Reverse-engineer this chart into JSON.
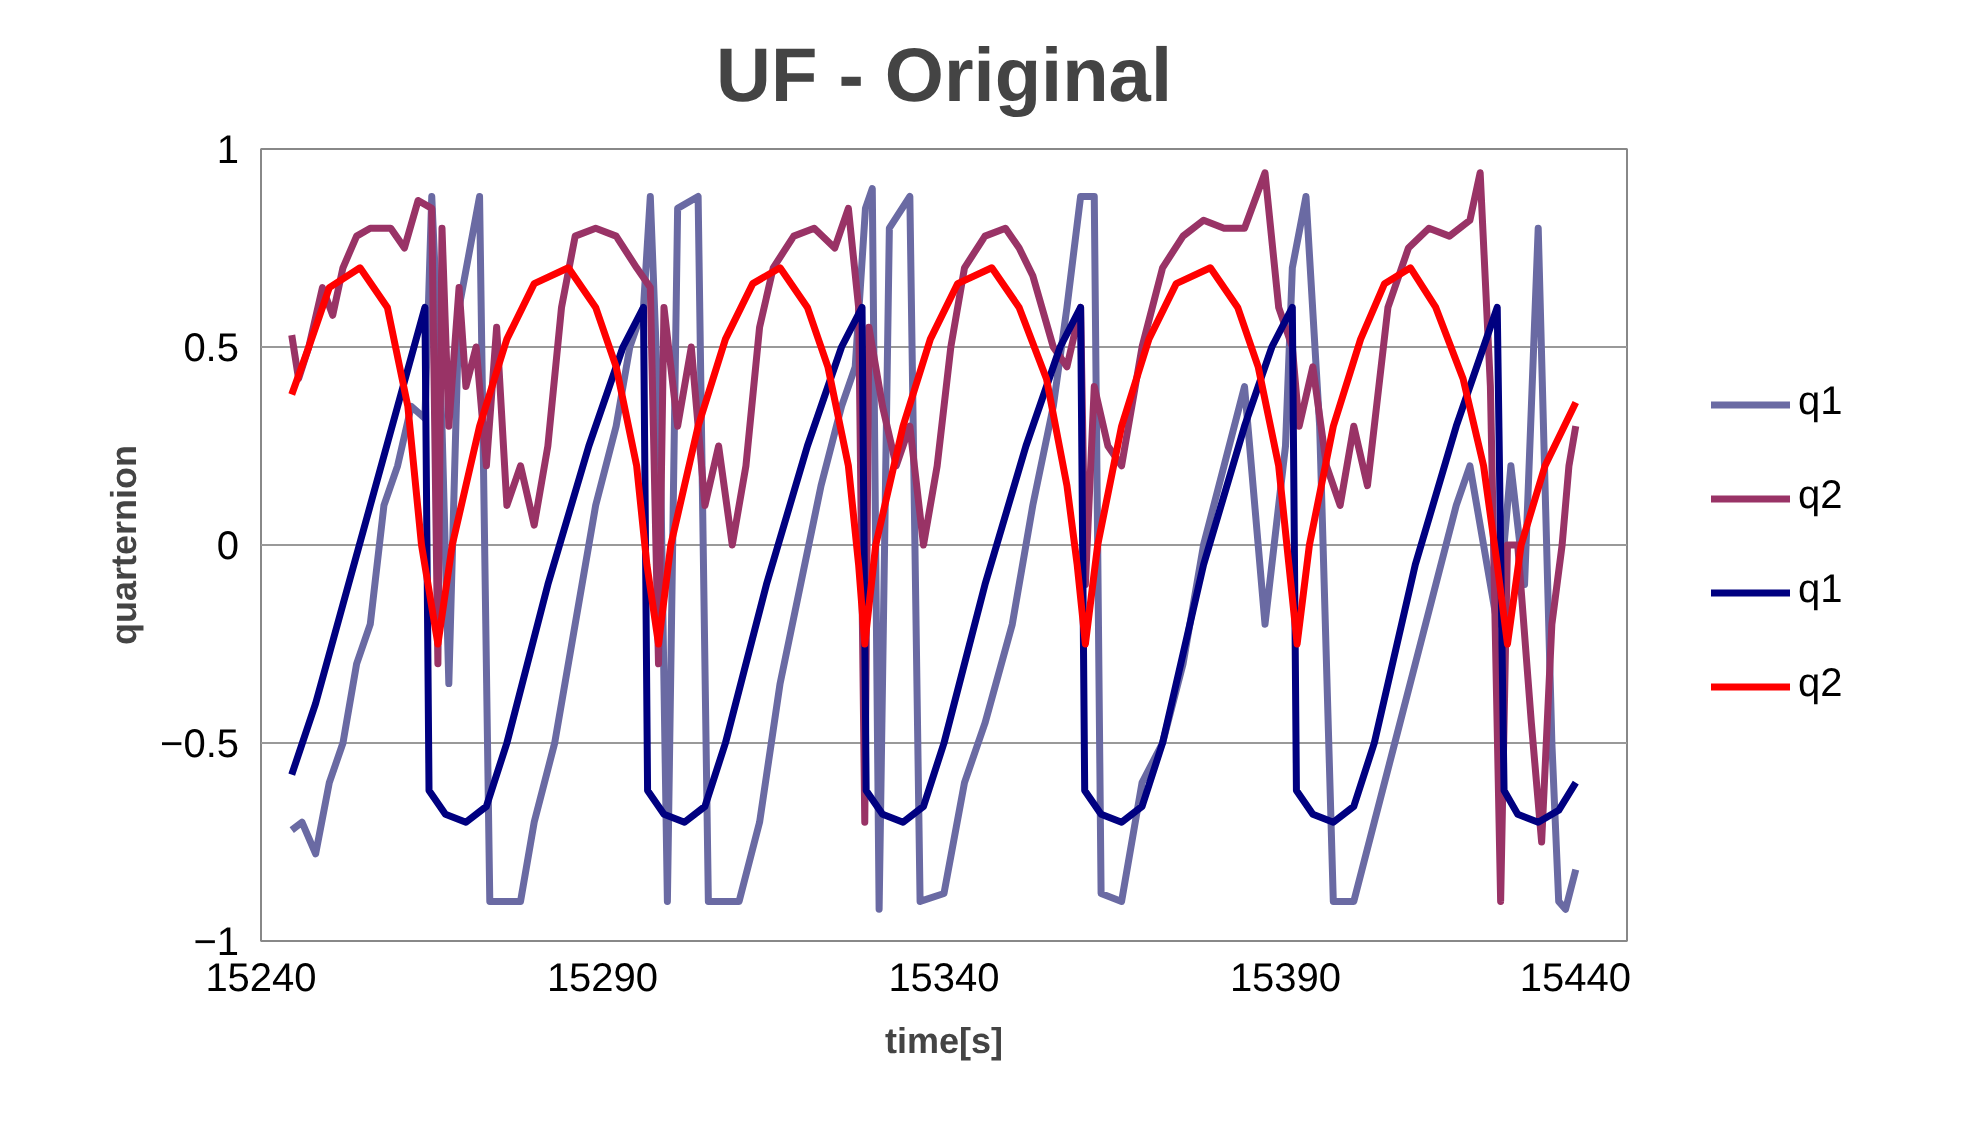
{
  "chart_data": {
    "type": "line",
    "title": "UF - Original",
    "xlabel": "time[s]",
    "ylabel": "quarternion",
    "xlim": [
      15240,
      15440
    ],
    "xticks": [
      15240,
      15290,
      15340,
      15390,
      15440
    ],
    "ylim": [
      -1,
      1
    ],
    "yticks": [
      {
        "value": -1,
        "label": "−1"
      },
      {
        "value": -0.5,
        "label": "−0.5"
      },
      0,
      0.5,
      1
    ],
    "grid": "y",
    "legend": "right",
    "marker": "none",
    "line_style": "solid",
    "series": [
      {
        "name": "q1",
        "color": "#6a6aa3",
        "x": [
          15244.5,
          15246,
          15248,
          15250,
          15252,
          15254,
          15256,
          15258,
          15260,
          15262,
          15264,
          15265,
          15266.5,
          15267.5,
          15269,
          15272,
          15273.5,
          15278,
          15280,
          15283,
          15286,
          15289,
          15292,
          15294,
          15296,
          15297,
          15298.5,
          15299.5,
          15301,
          15304,
          15305.5,
          15310,
          15313,
          15316,
          15319,
          15322,
          15325,
          15327,
          15328.5,
          15329.5,
          15330.5,
          15332,
          15335,
          15336.5,
          15340,
          15343,
          15346,
          15350,
          15353,
          15356,
          15358,
          15360,
          15362,
          15363,
          15366,
          15369,
          15372,
          15375,
          15378,
          15381,
          15384,
          15387,
          15390,
          15391,
          15393,
          15395,
          15397,
          15400,
          15403,
          15406,
          15409,
          15412,
          15415,
          15417,
          15419,
          15421,
          15423,
          15425,
          15427,
          15429,
          15430,
          15431,
          15432.5
        ],
        "values": [
          -0.72,
          -0.7,
          -0.78,
          -0.6,
          -0.5,
          -0.3,
          -0.2,
          0.1,
          0.2,
          0.35,
          0.32,
          0.88,
          0.3,
          -0.35,
          0.6,
          0.88,
          -0.9,
          -0.9,
          -0.7,
          -0.5,
          -0.2,
          0.1,
          0.3,
          0.5,
          0.6,
          0.88,
          0.2,
          -0.9,
          0.85,
          0.88,
          -0.9,
          -0.9,
          -0.7,
          -0.35,
          -0.1,
          0.15,
          0.35,
          0.45,
          0.85,
          0.9,
          -0.92,
          0.8,
          0.88,
          -0.9,
          -0.88,
          -0.6,
          -0.45,
          -0.2,
          0.1,
          0.35,
          0.6,
          0.88,
          0.88,
          -0.88,
          -0.9,
          -0.6,
          -0.5,
          -0.3,
          0.0,
          0.2,
          0.4,
          -0.2,
          0.25,
          0.7,
          0.88,
          0.3,
          -0.9,
          -0.9,
          -0.7,
          -0.5,
          -0.3,
          -0.1,
          0.1,
          0.2,
          0.0,
          -0.2,
          0.2,
          -0.1,
          0.8,
          -0.5,
          -0.9,
          -0.92,
          -0.82
        ]
      },
      {
        "name": "q2",
        "color": "#993366",
        "x": [
          15244.5,
          15245.5,
          15247,
          15249,
          15250.5,
          15252,
          15254,
          15256,
          15259,
          15261,
          15263,
          15265,
          15265.9,
          15266.5,
          15267.5,
          15269,
          15270,
          15271.5,
          15273,
          15274.5,
          15276,
          15278,
          15280,
          15282,
          15284,
          15286,
          15289,
          15292,
          15295,
          15297,
          15298.2,
          15299,
          15301,
          15303,
          15305,
          15307,
          15309,
          15311,
          15313,
          15315,
          15318,
          15321,
          15324,
          15326,
          15327.5,
          15328.4,
          15329,
          15331,
          15333,
          15335,
          15337,
          15339,
          15341,
          15343,
          15346,
          15349,
          15351,
          15353,
          15356,
          15358,
          15360,
          15360.7,
          15362,
          15364,
          15366,
          15369,
          15372,
          15375,
          15378,
          15381,
          15384,
          15387,
          15389,
          15391,
          15392,
          15394,
          15396,
          15398,
          15400,
          15402,
          15405,
          15408,
          15411,
          15414,
          15417,
          15418.5,
          15420,
          15421.5,
          15422.5,
          15424,
          15426,
          15427.5,
          15429,
          15430.5,
          15431.5,
          15432.5
        ],
        "values": [
          0.53,
          0.42,
          0.5,
          0.65,
          0.58,
          0.7,
          0.78,
          0.8,
          0.8,
          0.75,
          0.87,
          0.85,
          -0.3,
          0.8,
          0.3,
          0.65,
          0.4,
          0.5,
          0.2,
          0.55,
          0.1,
          0.2,
          0.05,
          0.25,
          0.6,
          0.78,
          0.8,
          0.78,
          0.7,
          0.65,
          -0.3,
          0.6,
          0.3,
          0.5,
          0.1,
          0.25,
          0.0,
          0.2,
          0.55,
          0.7,
          0.78,
          0.8,
          0.75,
          0.85,
          0.6,
          -0.7,
          0.55,
          0.35,
          0.2,
          0.3,
          0.0,
          0.2,
          0.5,
          0.7,
          0.78,
          0.8,
          0.75,
          0.68,
          0.5,
          0.45,
          0.6,
          -0.1,
          0.4,
          0.25,
          0.2,
          0.5,
          0.7,
          0.78,
          0.82,
          0.8,
          0.8,
          0.94,
          0.6,
          0.5,
          0.3,
          0.45,
          0.2,
          0.1,
          0.3,
          0.15,
          0.6,
          0.75,
          0.8,
          0.78,
          0.82,
          0.94,
          0.4,
          -0.9,
          0.0,
          0.0,
          -0.45,
          -0.75,
          -0.2,
          0.0,
          0.2,
          0.3
        ]
      },
      {
        "name": "q1",
        "color": "#000080",
        "x": [
          15244.5,
          15248,
          15252,
          15256,
          15260,
          15264,
          15264.6,
          15267,
          15270,
          15273,
          15276,
          15282,
          15288,
          15293,
          15296,
          15296.6,
          15299,
          15302,
          15305,
          15308,
          15314,
          15320,
          15325,
          15328,
          15328.6,
          15331,
          15334,
          15337,
          15340,
          15346,
          15352,
          15357,
          15360,
          15360.6,
          15363,
          15366,
          15369,
          15372,
          15378,
          15384,
          15388,
          15391,
          15391.6,
          15394,
          15397,
          15400,
          15403,
          15409,
          15415,
          15419,
          15421,
          15422,
          15424,
          15427,
          15430,
          15432.5
        ],
        "values": [
          -0.58,
          -0.4,
          -0.15,
          0.1,
          0.35,
          0.6,
          -0.62,
          -0.68,
          -0.7,
          -0.66,
          -0.5,
          -0.1,
          0.25,
          0.5,
          0.6,
          -0.62,
          -0.68,
          -0.7,
          -0.66,
          -0.5,
          -0.1,
          0.25,
          0.5,
          0.6,
          -0.62,
          -0.68,
          -0.7,
          -0.66,
          -0.5,
          -0.1,
          0.25,
          0.5,
          0.6,
          -0.62,
          -0.68,
          -0.7,
          -0.66,
          -0.5,
          -0.05,
          0.3,
          0.5,
          0.6,
          -0.62,
          -0.68,
          -0.7,
          -0.66,
          -0.5,
          -0.05,
          0.3,
          0.5,
          0.6,
          -0.62,
          -0.68,
          -0.7,
          -0.67,
          -0.6
        ]
      },
      {
        "name": "q2",
        "color": "#ff0000",
        "x": [
          15244.5,
          15247,
          15250,
          15254.5,
          15258.5,
          15261.5,
          15263.5,
          15265.9,
          15268,
          15272,
          15276,
          15280,
          15285,
          15289,
          15292,
          15295,
          15296.5,
          15298.2,
          15300,
          15304,
          15308,
          15312,
          15316,
          15320,
          15323,
          15326,
          15327.5,
          15328.4,
          15330,
          15334,
          15338,
          15342,
          15347,
          15351,
          15355,
          15358,
          15359.5,
          15360.7,
          15362.5,
          15366,
          15370,
          15374,
          15379,
          15383,
          15386,
          15389,
          15390.5,
          15391.7,
          15393.5,
          15397,
          15401,
          15404.5,
          15408.3,
          15412,
          15416,
          15419,
          15421,
          15422.5,
          15424.5,
          15428,
          15432.5
        ],
        "values": [
          0.38,
          0.5,
          0.65,
          0.7,
          0.6,
          0.35,
          0.0,
          -0.25,
          0.0,
          0.3,
          0.52,
          0.66,
          0.7,
          0.6,
          0.45,
          0.2,
          -0.05,
          -0.25,
          0.0,
          0.3,
          0.52,
          0.66,
          0.7,
          0.6,
          0.45,
          0.2,
          -0.05,
          -0.25,
          0.0,
          0.3,
          0.52,
          0.66,
          0.7,
          0.6,
          0.42,
          0.15,
          -0.05,
          -0.25,
          0.0,
          0.3,
          0.52,
          0.66,
          0.7,
          0.6,
          0.45,
          0.2,
          -0.05,
          -0.25,
          0.0,
          0.3,
          0.52,
          0.66,
          0.7,
          0.6,
          0.42,
          0.2,
          -0.05,
          -0.25,
          0.0,
          0.2,
          0.36
        ]
      }
    ]
  }
}
